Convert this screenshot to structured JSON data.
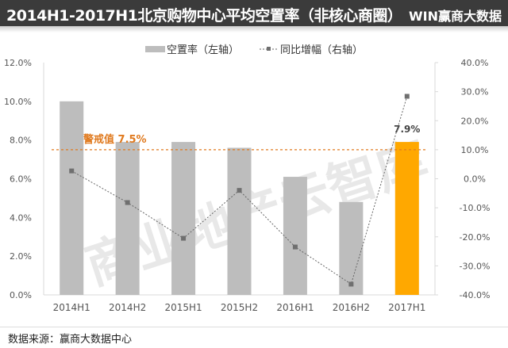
{
  "header": {
    "title": "2014H1-2017H1北京购物中心平均空置率（非核心商圈）",
    "logo": "WIN赢商大数据"
  },
  "footer": {
    "source": "数据来源：赢商大数据中心"
  },
  "watermark": "商业地产云智库",
  "chart_data": {
    "type": "bar",
    "title": "2014H1-2017H1北京购物中心平均空置率（非核心商圈）",
    "categories": [
      "2014H1",
      "2014H2",
      "2015H1",
      "2015H2",
      "2016H1",
      "2016H2",
      "2017H1"
    ],
    "series": [
      {
        "name": "空置率（左轴）",
        "type": "bar",
        "axis": "left",
        "values": [
          10.0,
          7.9,
          7.9,
          7.6,
          6.1,
          4.8,
          7.9
        ],
        "color": "#bdbdbd",
        "highlight_color": "#ffa800"
      },
      {
        "name": "同比增幅（右轴）",
        "type": "line",
        "axis": "right",
        "values": [
          2.7,
          -8.2,
          -20.5,
          -4.0,
          -23.5,
          -36.3,
          28.4
        ],
        "color": "#666666"
      }
    ],
    "left_axis": {
      "ylim": [
        0,
        12
      ],
      "ticks": [
        "0.0%",
        "2.0%",
        "4.0%",
        "6.0%",
        "8.0%",
        "10.0%",
        "12.0%"
      ]
    },
    "right_axis": {
      "ylim": [
        -40,
        40
      ],
      "ticks": [
        "-40.0%",
        "-30.0%",
        "-20.0%",
        "-10.0%",
        "0.0%",
        "10.0%",
        "20.0%",
        "30.0%",
        "40.0%"
      ]
    },
    "threshold": {
      "value": 7.5,
      "label": "警戒值 7.5%",
      "color": "#e07a1f"
    },
    "annotations": [
      {
        "category": "2017H1",
        "label": "7.9%"
      }
    ],
    "legend": "top-center"
  }
}
